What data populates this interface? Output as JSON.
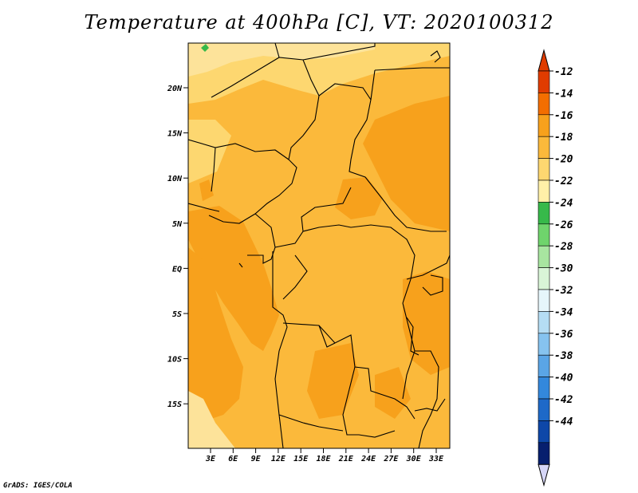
{
  "title": "Temperature at 400hPa [C], VT: 2020100312",
  "credit": "GrADS: IGES/COLA",
  "lat_labels": [
    "20N",
    "15N",
    "10N",
    "5N",
    "EQ",
    "5S",
    "10S",
    "15S"
  ],
  "lon_labels": [
    "3E",
    "6E",
    "9E",
    "12E",
    "15E",
    "18E",
    "21E",
    "24E",
    "27E",
    "30E",
    "33E"
  ],
  "colorbar": {
    "labels": [
      "-12",
      "-14",
      "-16",
      "-18",
      "-20",
      "-22",
      "-24",
      "-26",
      "-28",
      "-30",
      "-32",
      "-34",
      "-36",
      "-38",
      "-40",
      "-42",
      "-44"
    ],
    "colors": [
      "#e03c00",
      "#f36e00",
      "#f7a11c",
      "#fbb93b",
      "#fdd770",
      "#fff0a8",
      "#37b94a",
      "#6fd46c",
      "#a8e5a0",
      "#d9f5d7",
      "#e6f6fb",
      "#b5ddf4",
      "#86c3ef",
      "#5aa5e6",
      "#3388dc",
      "#1e69c8",
      "#0e47a8",
      "#071f6e"
    ],
    "over_color": "#e03c00",
    "under_color": "#d6d6f7"
  }
}
